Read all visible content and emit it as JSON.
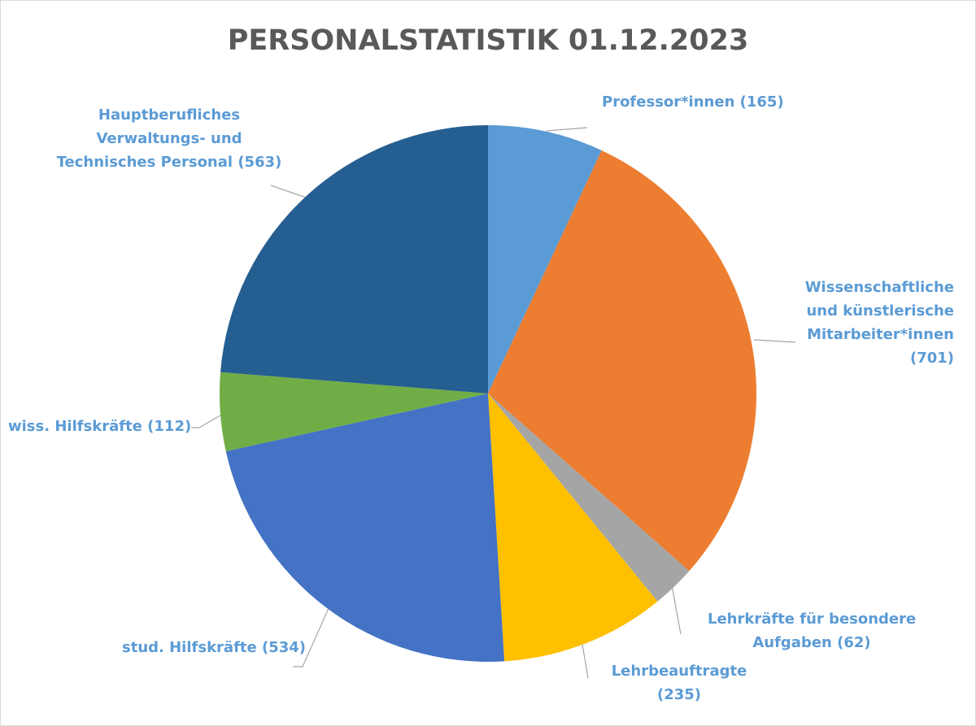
{
  "chart_data": {
    "type": "pie",
    "title": "PERSONALSTATISTIK 01.12.2023",
    "slices": [
      {
        "lines": [
          "Professor*innen (165)"
        ],
        "value": 165,
        "color": "#5b9bd5"
      },
      {
        "lines": [
          "Wissenschaftliche",
          "und künstlerische",
          "Mitarbeiter*innen",
          "(701)"
        ],
        "value": 701,
        "color": "#ed7d31"
      },
      {
        "lines": [
          "Lehrkräfte für besondere",
          "Aufgaben (62)"
        ],
        "value": 62,
        "color": "#a5a5a5"
      },
      {
        "lines": [
          "Lehrbeauftragte",
          "(235)"
        ],
        "value": 235,
        "color": "#ffc000"
      },
      {
        "lines": [
          "stud. Hilfskräfte (534)"
        ],
        "value": 534,
        "color": "#4472c4"
      },
      {
        "lines": [
          "wiss. Hilfskräfte (112)"
        ],
        "value": 112,
        "color": "#70ad47"
      },
      {
        "lines": [
          "Hauptberufliches",
          "Verwaltungs- und",
          "Technisches Personal (563)"
        ],
        "value": 563,
        "color": "#255e91"
      }
    ],
    "label_color": "#5b9bd5",
    "leader_color": "#a6a6a6"
  }
}
